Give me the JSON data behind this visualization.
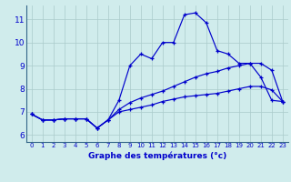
{
  "title": "Graphe des températures (°c)",
  "background_color": "#d0ecec",
  "grid_color": "#aacaca",
  "line_color": "#0000cc",
  "spine_color": "#336688",
  "xlim": [
    -0.5,
    23.5
  ],
  "ylim": [
    5.7,
    11.6
  ],
  "xticks": [
    0,
    1,
    2,
    3,
    4,
    5,
    6,
    7,
    8,
    9,
    10,
    11,
    12,
    13,
    14,
    15,
    16,
    17,
    18,
    19,
    20,
    21,
    22,
    23
  ],
  "yticks": [
    6,
    7,
    8,
    9,
    10,
    11
  ],
  "series1": [
    6.9,
    6.65,
    6.65,
    6.7,
    6.7,
    6.7,
    6.3,
    6.65,
    7.5,
    9.0,
    9.5,
    9.3,
    10.0,
    10.0,
    11.2,
    11.28,
    10.85,
    9.65,
    9.5,
    9.1,
    9.1,
    8.5,
    7.5,
    7.45
  ],
  "series2": [
    6.9,
    6.65,
    6.65,
    6.7,
    6.7,
    6.7,
    6.3,
    6.65,
    7.1,
    7.4,
    7.6,
    7.75,
    7.9,
    8.1,
    8.3,
    8.5,
    8.65,
    8.75,
    8.9,
    9.0,
    9.1,
    9.1,
    8.8,
    7.45
  ],
  "series3": [
    6.9,
    6.65,
    6.65,
    6.7,
    6.7,
    6.7,
    6.3,
    6.65,
    7.0,
    7.1,
    7.2,
    7.3,
    7.45,
    7.55,
    7.65,
    7.7,
    7.75,
    7.8,
    7.9,
    8.0,
    8.1,
    8.1,
    7.95,
    7.45
  ],
  "xlabel_fontsize": 6.5,
  "tick_fontsize_x": 5.0,
  "tick_fontsize_y": 6.5
}
